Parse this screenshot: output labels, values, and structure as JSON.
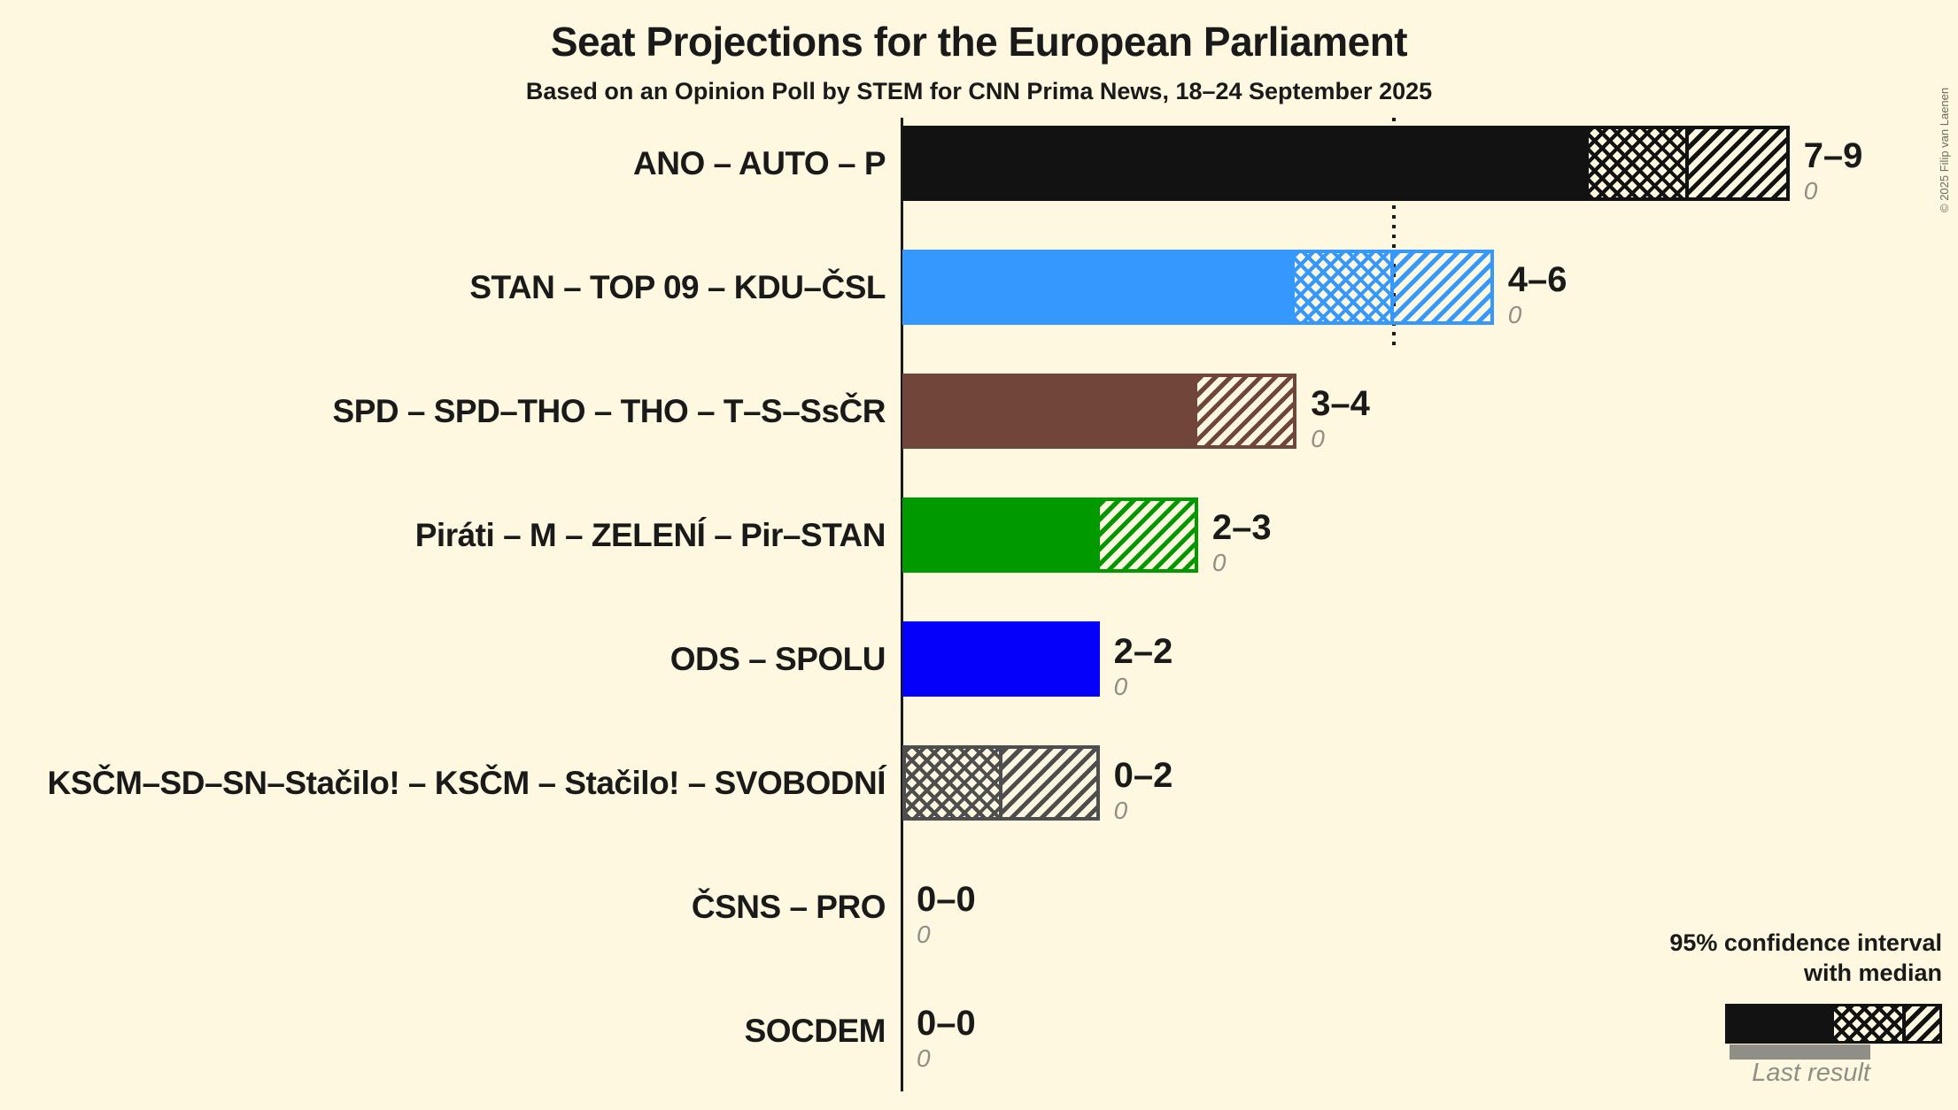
{
  "header": {
    "title": "Seat Projections for the European Parliament",
    "subtitle": "Based on an Opinion Poll by STEM for CNN Prima News, 18–24 September 2025"
  },
  "copyright": "© 2025 Filip van Laenen",
  "legend": {
    "ci_line1": "95% confidence interval",
    "ci_line2": "with median",
    "last_result_label": "Last result"
  },
  "colors": {
    "background": "#FDF8DF",
    "text": "#1A1A1A",
    "muted": "#8F8F87",
    "axis": "#1A1A1A"
  },
  "chart_data": {
    "type": "bar",
    "orientation": "horizontal",
    "unit": "seats",
    "threshold_seats": 5,
    "legend_note": "95% confidence interval with median; gray underbar = last result",
    "parties": [
      {
        "label": "ANO – AUTO – P",
        "color": "#121212",
        "ci_low": 7,
        "median": 8,
        "ci_high": 9,
        "range_label": "7–9",
        "last_result": "0"
      },
      {
        "label": "STAN – TOP 09 – KDU–ČSL",
        "color": "#3598FC",
        "ci_low": 4,
        "median": 5,
        "ci_high": 6,
        "range_label": "4–6",
        "last_result": "0"
      },
      {
        "label": "SPD – SPD–THO – THO – T–S–SsČR",
        "color": "#70463A",
        "ci_low": 3,
        "median": 3,
        "ci_high": 4,
        "range_label": "3–4",
        "last_result": "0"
      },
      {
        "label": "Piráti – M – ZELENÍ – Pir–STAN",
        "color": "#009900",
        "ci_low": 2,
        "median": 2,
        "ci_high": 3,
        "range_label": "2–3",
        "last_result": "0"
      },
      {
        "label": "ODS – SPOLU",
        "color": "#0500FA",
        "ci_low": 2,
        "median": 2,
        "ci_high": 2,
        "range_label": "2–2",
        "last_result": "0"
      },
      {
        "label": "KSČM–SD–SN–Stačilo! – KSČM – Stačilo! – SVOBODNÍ",
        "color": "#4E4E4E",
        "ci_low": 0,
        "median": 1,
        "ci_high": 2,
        "range_label": "0–2",
        "last_result": "0"
      },
      {
        "label": "ČSNS – PRO",
        "color": "",
        "ci_low": 0,
        "median": 0,
        "ci_high": 0,
        "range_label": "0–0",
        "last_result": "0"
      },
      {
        "label": "SOCDEM",
        "color": "",
        "ci_low": 0,
        "median": 0,
        "ci_high": 0,
        "range_label": "0–0",
        "last_result": "0"
      }
    ]
  }
}
